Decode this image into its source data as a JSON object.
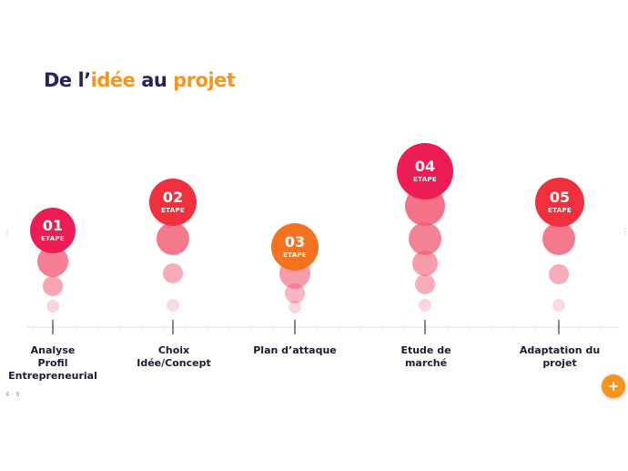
{
  "title": {
    "part1": "De l’",
    "part2": "idée",
    "part3": " au ",
    "part4": "projet"
  },
  "steps": [
    {
      "number": "01",
      "word": "ETAPE",
      "label_lines": [
        "Analyse",
        "Profil",
        "Entrepreneurial"
      ]
    },
    {
      "number": "02",
      "word": "ETAPE",
      "label_lines": [
        "Choix",
        "Idée/Concept"
      ]
    },
    {
      "number": "03",
      "word": "ETAPE",
      "label_lines": [
        "Plan d’attaque"
      ]
    },
    {
      "number": "04",
      "word": "ETAPE",
      "label_lines": [
        "Etude de",
        "marché"
      ]
    },
    {
      "number": "05",
      "word": "ETAPE",
      "label_lines": [
        "Adaptation du",
        "projet"
      ]
    }
  ],
  "page_indicator": "4 · 9",
  "fab_label": "+",
  "colors": {
    "title_dark": "#2b1f5c",
    "title_orange": "#f7941d",
    "step_main": [
      "#ee1c54",
      "#f0303c",
      "#f5731f",
      "#ee1c54",
      "#f0303c"
    ],
    "bubble_tint": "#f25a73"
  }
}
